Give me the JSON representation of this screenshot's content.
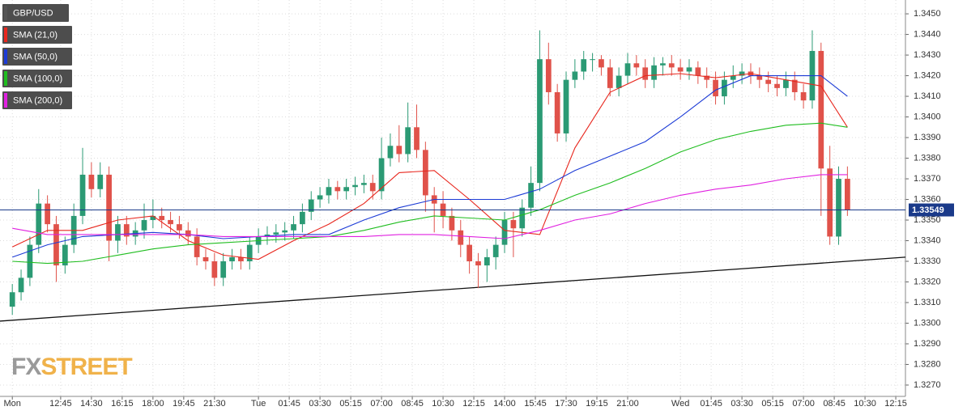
{
  "chart_data": {
    "type": "candlestick",
    "xlim": [
      9.3,
      60.8
    ],
    "ylim": [
      1.32645,
      1.34567
    ],
    "grid": true,
    "yticks": [
      {
        "value": 1.327,
        "label": "1.3270"
      },
      {
        "value": 1.328,
        "label": "1.3280"
      },
      {
        "value": 1.329,
        "label": "1.3290"
      },
      {
        "value": 1.33,
        "label": "1.3300"
      },
      {
        "value": 1.331,
        "label": "1.3310"
      },
      {
        "value": 1.332,
        "label": "1.3320"
      },
      {
        "value": 1.333,
        "label": "1.3330"
      },
      {
        "value": 1.334,
        "label": "1.3340"
      },
      {
        "value": 1.335,
        "label": "1.3350"
      },
      {
        "value": 1.336,
        "label": "1.3360"
      },
      {
        "value": 1.337,
        "label": "1.3370"
      },
      {
        "value": 1.338,
        "label": "1.3380"
      },
      {
        "value": 1.339,
        "label": "1.3390"
      },
      {
        "value": 1.34,
        "label": "1.3400"
      },
      {
        "value": 1.341,
        "label": "1.3410"
      },
      {
        "value": 1.342,
        "label": "1.3420"
      },
      {
        "value": 1.343,
        "label": "1.3430"
      },
      {
        "value": 1.344,
        "label": "1.3440"
      },
      {
        "value": 1.345,
        "label": "1.3450"
      }
    ],
    "xticks": [
      {
        "value": 10,
        "label": "Mon"
      },
      {
        "value": 12.75,
        "label": "12:45"
      },
      {
        "value": 14.5,
        "label": "14:30"
      },
      {
        "value": 16.25,
        "label": "16:15"
      },
      {
        "value": 18,
        "label": "18:00"
      },
      {
        "value": 19.75,
        "label": "19:45"
      },
      {
        "value": 21.5,
        "label": "21:30"
      },
      {
        "value": 24,
        "label": "Tue"
      },
      {
        "value": 25.75,
        "label": "01:45"
      },
      {
        "value": 27.5,
        "label": "03:30"
      },
      {
        "value": 29.25,
        "label": "05:15"
      },
      {
        "value": 31,
        "label": "07:00"
      },
      {
        "value": 32.75,
        "label": "08:45"
      },
      {
        "value": 34.5,
        "label": "10:30"
      },
      {
        "value": 36.25,
        "label": "12:15"
      },
      {
        "value": 38,
        "label": "14:00"
      },
      {
        "value": 39.75,
        "label": "15:45"
      },
      {
        "value": 41.5,
        "label": "17:30"
      },
      {
        "value": 43.25,
        "label": "19:15"
      },
      {
        "value": 45,
        "label": "21:00"
      },
      {
        "value": 48,
        "label": "Wed"
      },
      {
        "value": 49.75,
        "label": "01:45"
      },
      {
        "value": 51.5,
        "label": "03:30"
      },
      {
        "value": 53.25,
        "label": "05:15"
      },
      {
        "value": 55,
        "label": "07:00"
      },
      {
        "value": 56.75,
        "label": "08:45"
      },
      {
        "value": 58.5,
        "label": "10:30"
      },
      {
        "value": 60.25,
        "label": "12:15"
      }
    ],
    "candles": {
      "name": "GBP/USD",
      "color": "#555555",
      "up_color": "#2b9a74",
      "down_color": "#e0524a",
      "x": [
        10,
        10.5,
        11,
        11.5,
        12,
        12.5,
        13,
        13.5,
        14,
        14.5,
        15,
        15.5,
        16,
        16.5,
        17,
        17.5,
        18,
        18.5,
        19,
        19.5,
        20,
        20.5,
        21,
        21.5,
        22,
        22.5,
        23,
        23.5,
        24,
        24.5,
        25,
        25.5,
        26,
        26.5,
        27,
        27.5,
        28,
        28.5,
        29,
        29.5,
        30,
        30.5,
        31,
        31.5,
        32,
        32.5,
        33,
        33.5,
        34,
        34.5,
        35,
        35.5,
        36,
        36.5,
        37,
        37.5,
        38,
        38.5,
        39,
        39.5,
        40,
        40.5,
        41,
        41.5,
        42,
        42.5,
        43,
        43.5,
        44,
        44.5,
        45,
        45.5,
        46,
        46.5,
        47,
        47.5,
        48,
        48.5,
        49,
        49.5,
        50,
        50.5,
        51,
        51.5,
        52,
        52.5,
        53,
        53.5,
        54,
        54.5,
        55,
        55.5,
        56,
        56.5,
        57,
        57.5
      ],
      "open": [
        1.3308,
        1.3315,
        1.3322,
        1.3338,
        1.3358,
        1.3348,
        1.3328,
        1.3338,
        1.3352,
        1.3372,
        1.3365,
        1.3372,
        1.334,
        1.3348,
        1.3342,
        1.3345,
        1.335,
        1.3352,
        1.335,
        1.3348,
        1.3345,
        1.3342,
        1.3332,
        1.333,
        1.3322,
        1.333,
        1.3332,
        1.333,
        1.3338,
        1.3342,
        1.3343,
        1.3344,
        1.3345,
        1.3348,
        1.3354,
        1.336,
        1.3362,
        1.3366,
        1.3364,
        1.3366,
        1.3367,
        1.3368,
        1.3364,
        1.338,
        1.3386,
        1.3382,
        1.3395,
        1.3384,
        1.3362,
        1.3358,
        1.3352,
        1.3345,
        1.3338,
        1.333,
        1.3328,
        1.3332,
        1.3338,
        1.335,
        1.3346,
        1.3356,
        1.3368,
        1.3428,
        1.3412,
        1.3392,
        1.3418,
        1.3422,
        1.3428,
        1.3428,
        1.3424,
        1.3414,
        1.342,
        1.3426,
        1.3424,
        1.3418,
        1.3425,
        1.3426,
        1.3424,
        1.3422,
        1.3424,
        1.342,
        1.3418,
        1.341,
        1.3418,
        1.342,
        1.3422,
        1.342,
        1.3418,
        1.3416,
        1.3414,
        1.3418,
        1.3412,
        1.3408,
        1.3432,
        1.3375,
        1.3342,
        1.337
      ],
      "high": [
        1.3319,
        1.3326,
        1.3342,
        1.3365,
        1.3362,
        1.3352,
        1.3342,
        1.3358,
        1.3385,
        1.3378,
        1.3378,
        1.3376,
        1.3352,
        1.3352,
        1.3349,
        1.3358,
        1.336,
        1.3356,
        1.3354,
        1.3352,
        1.3349,
        1.3346,
        1.3336,
        1.3334,
        1.3334,
        1.3336,
        1.3336,
        1.3342,
        1.3346,
        1.3347,
        1.3348,
        1.3349,
        1.3352,
        1.3358,
        1.3364,
        1.3366,
        1.337,
        1.3369,
        1.337,
        1.3371,
        1.3372,
        1.3372,
        1.339,
        1.3392,
        1.3396,
        1.3407,
        1.3406,
        1.3388,
        1.3366,
        1.3364,
        1.3356,
        1.335,
        1.3342,
        1.3334,
        1.3336,
        1.3342,
        1.3354,
        1.3354,
        1.336,
        1.3376,
        1.3442,
        1.3436,
        1.3416,
        1.3422,
        1.3428,
        1.3432,
        1.3431,
        1.343,
        1.3428,
        1.3424,
        1.3431,
        1.343,
        1.3428,
        1.3429,
        1.3429,
        1.343,
        1.3428,
        1.3428,
        1.3427,
        1.3424,
        1.3422,
        1.3422,
        1.3425,
        1.3426,
        1.3426,
        1.3424,
        1.3422,
        1.342,
        1.3422,
        1.3422,
        1.3416,
        1.3442,
        1.3436,
        1.3386,
        1.3376,
        1.3376
      ],
      "low": [
        1.3304,
        1.3311,
        1.3318,
        1.3334,
        1.3344,
        1.332,
        1.3324,
        1.3334,
        1.3348,
        1.3361,
        1.3361,
        1.333,
        1.3334,
        1.3338,
        1.3338,
        1.3341,
        1.3346,
        1.3346,
        1.3344,
        1.3341,
        1.3338,
        1.3328,
        1.3326,
        1.3318,
        1.3318,
        1.3326,
        1.3326,
        1.3326,
        1.3334,
        1.3338,
        1.3339,
        1.334,
        1.3341,
        1.3344,
        1.335,
        1.3356,
        1.3358,
        1.336,
        1.336,
        1.3362,
        1.3363,
        1.336,
        1.336,
        1.3376,
        1.3378,
        1.3378,
        1.338,
        1.3354,
        1.3344,
        1.3346,
        1.334,
        1.3332,
        1.3324,
        1.3317,
        1.332,
        1.3326,
        1.3334,
        1.3332,
        1.3342,
        1.3352,
        1.3364,
        1.3406,
        1.3388,
        1.3388,
        1.3414,
        1.3418,
        1.3422,
        1.342,
        1.341,
        1.341,
        1.3416,
        1.342,
        1.3414,
        1.3414,
        1.342,
        1.342,
        1.3418,
        1.3418,
        1.3416,
        1.3414,
        1.3406,
        1.3406,
        1.3414,
        1.3416,
        1.3416,
        1.3414,
        1.3412,
        1.341,
        1.341,
        1.3408,
        1.3404,
        1.3404,
        1.3352,
        1.3338,
        1.3338,
        1.3352
      ],
      "close": [
        1.3315,
        1.3322,
        1.3338,
        1.3358,
        1.3348,
        1.3328,
        1.3338,
        1.3352,
        1.3372,
        1.3365,
        1.3372,
        1.334,
        1.3348,
        1.3342,
        1.3345,
        1.335,
        1.3352,
        1.335,
        1.3348,
        1.3345,
        1.3342,
        1.3332,
        1.333,
        1.3322,
        1.333,
        1.3332,
        1.333,
        1.3338,
        1.3342,
        1.3343,
        1.3344,
        1.3345,
        1.3348,
        1.3354,
        1.336,
        1.3362,
        1.3366,
        1.3364,
        1.3366,
        1.3367,
        1.3368,
        1.3364,
        1.338,
        1.3386,
        1.3382,
        1.3395,
        1.3384,
        1.3362,
        1.3358,
        1.3352,
        1.3345,
        1.3338,
        1.333,
        1.3328,
        1.3332,
        1.3338,
        1.335,
        1.3346,
        1.3356,
        1.3368,
        1.3428,
        1.3412,
        1.3392,
        1.3418,
        1.3422,
        1.3428,
        1.3428,
        1.3424,
        1.3414,
        1.342,
        1.3426,
        1.3424,
        1.3418,
        1.3425,
        1.3426,
        1.3424,
        1.3422,
        1.3424,
        1.342,
        1.3418,
        1.341,
        1.3418,
        1.342,
        1.3422,
        1.342,
        1.3418,
        1.3416,
        1.3414,
        1.3418,
        1.3412,
        1.3408,
        1.3432,
        1.3375,
        1.3342,
        1.337,
        1.3355
      ]
    },
    "series": [
      {
        "name": "SMA (21,0)",
        "color": "#e8271e",
        "x": [
          10,
          12,
          14,
          16,
          18,
          20,
          22,
          24,
          26,
          28,
          30,
          32,
          34,
          36,
          38,
          40,
          42,
          44,
          46,
          48,
          50,
          52,
          54,
          56,
          57.5
        ],
        "values": [
          1.3337,
          1.3345,
          1.3345,
          1.335,
          1.3352,
          1.334,
          1.3333,
          1.3331,
          1.334,
          1.3348,
          1.3358,
          1.3373,
          1.3374,
          1.336,
          1.3345,
          1.3343,
          1.3385,
          1.3412,
          1.342,
          1.3421,
          1.3419,
          1.3421,
          1.3418,
          1.3415,
          1.3395
        ]
      },
      {
        "name": "SMA (50,0)",
        "color": "#1c3bd6",
        "x": [
          10,
          12,
          14,
          16,
          18,
          20,
          22,
          24,
          26,
          28,
          30,
          32,
          34,
          36,
          38,
          40,
          42,
          44,
          46,
          48,
          50,
          52,
          54,
          56,
          57.5
        ],
        "values": [
          1.3332,
          1.3338,
          1.3342,
          1.3343,
          1.3344,
          1.3343,
          1.3341,
          1.3342,
          1.3343,
          1.3343,
          1.335,
          1.3356,
          1.336,
          1.336,
          1.336,
          1.3365,
          1.3374,
          1.3381,
          1.3388,
          1.34,
          1.3413,
          1.342,
          1.342,
          1.342,
          1.341
        ]
      },
      {
        "name": "SMA (100,0)",
        "color": "#1fbd1f",
        "x": [
          10,
          12,
          14,
          16,
          18,
          20,
          22,
          24,
          26,
          28,
          30,
          32,
          34,
          36,
          38,
          40,
          42,
          44,
          46,
          48,
          50,
          52,
          54,
          56,
          57.5
        ],
        "values": [
          1.333,
          1.3329,
          1.333,
          1.3333,
          1.3336,
          1.3338,
          1.3339,
          1.334,
          1.3341,
          1.3342,
          1.3345,
          1.3349,
          1.3352,
          1.3351,
          1.335,
          1.3355,
          1.3362,
          1.3368,
          1.3375,
          1.3383,
          1.3389,
          1.3393,
          1.3396,
          1.3397,
          1.3395
        ]
      },
      {
        "name": "SMA (200,0)",
        "color": "#e020e0",
        "x": [
          10,
          12,
          14,
          16,
          18,
          20,
          22,
          24,
          26,
          28,
          30,
          32,
          34,
          36,
          38,
          40,
          42,
          44,
          46,
          48,
          50,
          52,
          54,
          56,
          57.5
        ],
        "values": [
          1.3346,
          1.3343,
          1.3343,
          1.3343,
          1.3343,
          1.3343,
          1.3342,
          1.3342,
          1.3342,
          1.3342,
          1.3342,
          1.3343,
          1.3343,
          1.3342,
          1.3341,
          1.3345,
          1.335,
          1.3353,
          1.3358,
          1.3362,
          1.3365,
          1.3367,
          1.337,
          1.3372,
          1.3372
        ]
      }
    ],
    "trendline": {
      "color": "#111111",
      "x": [
        9.3,
        60.8
      ],
      "values": [
        1.3301,
        1.3332
      ]
    },
    "last_price": {
      "value": 1.33549,
      "color": "#1a3a8a"
    },
    "watermark": {
      "prefix": "FX",
      "suffix": "STREET"
    }
  }
}
